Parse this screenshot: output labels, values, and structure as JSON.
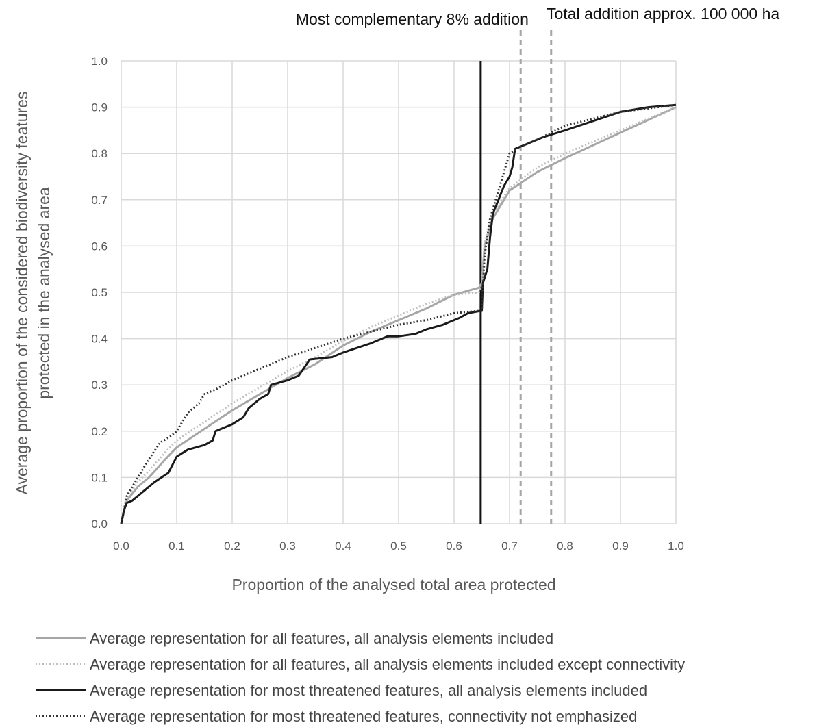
{
  "chart_data": {
    "type": "line",
    "xlabel": "Proportion of the analysed total area protected",
    "ylabel_line1": "Average proportion of the considered biodiversity features",
    "ylabel_line2": "protected in the analysed area",
    "xlim": [
      0,
      1
    ],
    "ylim": [
      0,
      1
    ],
    "x_ticks": [
      "0.0",
      "0.1",
      "0.2",
      "0.3",
      "0.4",
      "0.5",
      "0.6",
      "0.7",
      "0.8",
      "0.9",
      "1.0"
    ],
    "y_ticks": [
      "0.0",
      "0.1",
      "0.2",
      "0.3",
      "0.4",
      "0.5",
      "0.6",
      "0.7",
      "0.8",
      "0.9",
      "1.0"
    ],
    "grid": true,
    "legend_position": "bottom",
    "annotations": [
      {
        "text": "Most complementary 8% addition",
        "x": 0.648,
        "style": "solid",
        "color": "#111111"
      },
      {
        "text": "Total addition approx. 100 000 ha",
        "x": 0.72,
        "style": "dashed",
        "color": "#a6a6a6"
      }
    ],
    "extra_reference_lines": [
      {
        "x": 0.775,
        "style": "dashed",
        "color": "#a6a6a6"
      }
    ],
    "series": [
      {
        "name": "Average representation for all features, all analysis elements included",
        "color": "#a6a6a6",
        "dash": "solid",
        "points": [
          [
            0,
            0
          ],
          [
            0.01,
            0.05
          ],
          [
            0.03,
            0.08
          ],
          [
            0.05,
            0.1
          ],
          [
            0.08,
            0.14
          ],
          [
            0.1,
            0.165
          ],
          [
            0.15,
            0.205
          ],
          [
            0.2,
            0.245
          ],
          [
            0.25,
            0.28
          ],
          [
            0.3,
            0.315
          ],
          [
            0.35,
            0.345
          ],
          [
            0.4,
            0.385
          ],
          [
            0.45,
            0.415
          ],
          [
            0.5,
            0.44
          ],
          [
            0.55,
            0.465
          ],
          [
            0.6,
            0.495
          ],
          [
            0.645,
            0.51
          ],
          [
            0.65,
            0.52
          ],
          [
            0.655,
            0.6
          ],
          [
            0.67,
            0.66
          ],
          [
            0.7,
            0.72
          ],
          [
            0.75,
            0.76
          ],
          [
            0.8,
            0.79
          ],
          [
            0.9,
            0.845
          ],
          [
            1.0,
            0.9
          ]
        ]
      },
      {
        "name": "Average representation for all features, all analysis elements included except connectivity",
        "color": "#bfbfbf",
        "dash": "dotted",
        "points": [
          [
            0,
            0
          ],
          [
            0.01,
            0.055
          ],
          [
            0.03,
            0.09
          ],
          [
            0.05,
            0.115
          ],
          [
            0.08,
            0.155
          ],
          [
            0.1,
            0.18
          ],
          [
            0.15,
            0.22
          ],
          [
            0.2,
            0.26
          ],
          [
            0.25,
            0.295
          ],
          [
            0.3,
            0.33
          ],
          [
            0.35,
            0.36
          ],
          [
            0.4,
            0.395
          ],
          [
            0.45,
            0.425
          ],
          [
            0.5,
            0.45
          ],
          [
            0.55,
            0.475
          ],
          [
            0.6,
            0.495
          ],
          [
            0.645,
            0.5
          ],
          [
            0.65,
            0.52
          ],
          [
            0.655,
            0.61
          ],
          [
            0.67,
            0.67
          ],
          [
            0.7,
            0.725
          ],
          [
            0.75,
            0.77
          ],
          [
            0.8,
            0.8
          ],
          [
            0.9,
            0.85
          ],
          [
            1.0,
            0.9
          ]
        ]
      },
      {
        "name": "Average representation for most threatened features, all analysis elements included",
        "color": "#1a1a1a",
        "dash": "solid",
        "points": [
          [
            0,
            0
          ],
          [
            0.005,
            0.03
          ],
          [
            0.01,
            0.045
          ],
          [
            0.02,
            0.05
          ],
          [
            0.04,
            0.07
          ],
          [
            0.06,
            0.09
          ],
          [
            0.085,
            0.11
          ],
          [
            0.1,
            0.145
          ],
          [
            0.12,
            0.16
          ],
          [
            0.15,
            0.17
          ],
          [
            0.165,
            0.18
          ],
          [
            0.17,
            0.2
          ],
          [
            0.2,
            0.215
          ],
          [
            0.22,
            0.23
          ],
          [
            0.23,
            0.25
          ],
          [
            0.25,
            0.27
          ],
          [
            0.265,
            0.28
          ],
          [
            0.27,
            0.3
          ],
          [
            0.3,
            0.31
          ],
          [
            0.32,
            0.32
          ],
          [
            0.34,
            0.355
          ],
          [
            0.38,
            0.36
          ],
          [
            0.4,
            0.37
          ],
          [
            0.45,
            0.39
          ],
          [
            0.48,
            0.405
          ],
          [
            0.5,
            0.405
          ],
          [
            0.53,
            0.41
          ],
          [
            0.54,
            0.415
          ],
          [
            0.55,
            0.42
          ],
          [
            0.58,
            0.43
          ],
          [
            0.61,
            0.445
          ],
          [
            0.625,
            0.455
          ],
          [
            0.648,
            0.46
          ],
          [
            0.65,
            0.46
          ],
          [
            0.652,
            0.52
          ],
          [
            0.66,
            0.55
          ],
          [
            0.665,
            0.62
          ],
          [
            0.67,
            0.67
          ],
          [
            0.68,
            0.7
          ],
          [
            0.69,
            0.73
          ],
          [
            0.7,
            0.75
          ],
          [
            0.705,
            0.77
          ],
          [
            0.71,
            0.81
          ],
          [
            0.73,
            0.82
          ],
          [
            0.76,
            0.835
          ],
          [
            0.8,
            0.85
          ],
          [
            0.85,
            0.87
          ],
          [
            0.9,
            0.89
          ],
          [
            0.95,
            0.9
          ],
          [
            1.0,
            0.905
          ]
        ]
      },
      {
        "name": "Average representation for most threatened features, connectivity not emphasized",
        "color": "#333333",
        "dash": "dotted",
        "points": [
          [
            0,
            0
          ],
          [
            0.01,
            0.06
          ],
          [
            0.03,
            0.1
          ],
          [
            0.05,
            0.14
          ],
          [
            0.07,
            0.175
          ],
          [
            0.09,
            0.19
          ],
          [
            0.1,
            0.2
          ],
          [
            0.12,
            0.24
          ],
          [
            0.14,
            0.26
          ],
          [
            0.15,
            0.28
          ],
          [
            0.17,
            0.29
          ],
          [
            0.2,
            0.31
          ],
          [
            0.25,
            0.335
          ],
          [
            0.3,
            0.36
          ],
          [
            0.35,
            0.38
          ],
          [
            0.4,
            0.4
          ],
          [
            0.45,
            0.415
          ],
          [
            0.5,
            0.43
          ],
          [
            0.55,
            0.44
          ],
          [
            0.6,
            0.455
          ],
          [
            0.645,
            0.46
          ],
          [
            0.65,
            0.46
          ],
          [
            0.655,
            0.58
          ],
          [
            0.665,
            0.66
          ],
          [
            0.68,
            0.72
          ],
          [
            0.7,
            0.8
          ],
          [
            0.72,
            0.815
          ],
          [
            0.75,
            0.83
          ],
          [
            0.8,
            0.86
          ],
          [
            0.9,
            0.89
          ],
          [
            1.0,
            0.905
          ]
        ]
      }
    ]
  }
}
